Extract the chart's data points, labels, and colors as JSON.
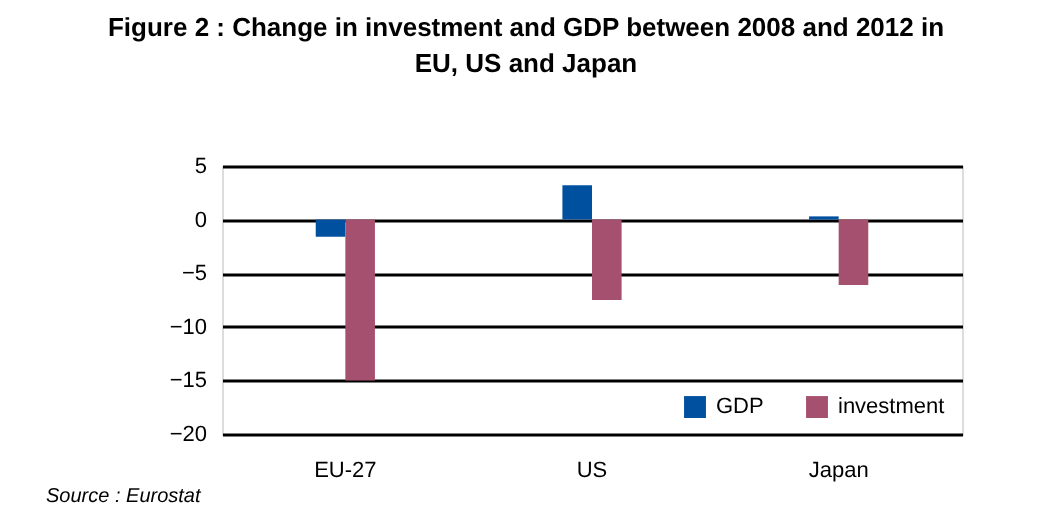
{
  "chart_data": {
    "type": "bar",
    "title": "Figure 2 : Change in investment and GDP between 2008 and 2012 in EU, US and Japan",
    "categories": [
      "EU-27",
      "US",
      "Japan"
    ],
    "series": [
      {
        "name": "GDP",
        "color": "#0050a0",
        "values": [
          -1.6,
          3.2,
          0.3
        ]
      },
      {
        "name": "investment",
        "color": "#a5506e",
        "values": [
          -15.0,
          -7.5,
          -6.1
        ]
      }
    ],
    "ylim": [
      -20,
      5
    ],
    "yticks": [
      -20,
      -15,
      -10,
      -5,
      0,
      5
    ],
    "grid": "y",
    "legend": "bottom right",
    "annotations": [
      "Source  : Eurostat"
    ]
  }
}
